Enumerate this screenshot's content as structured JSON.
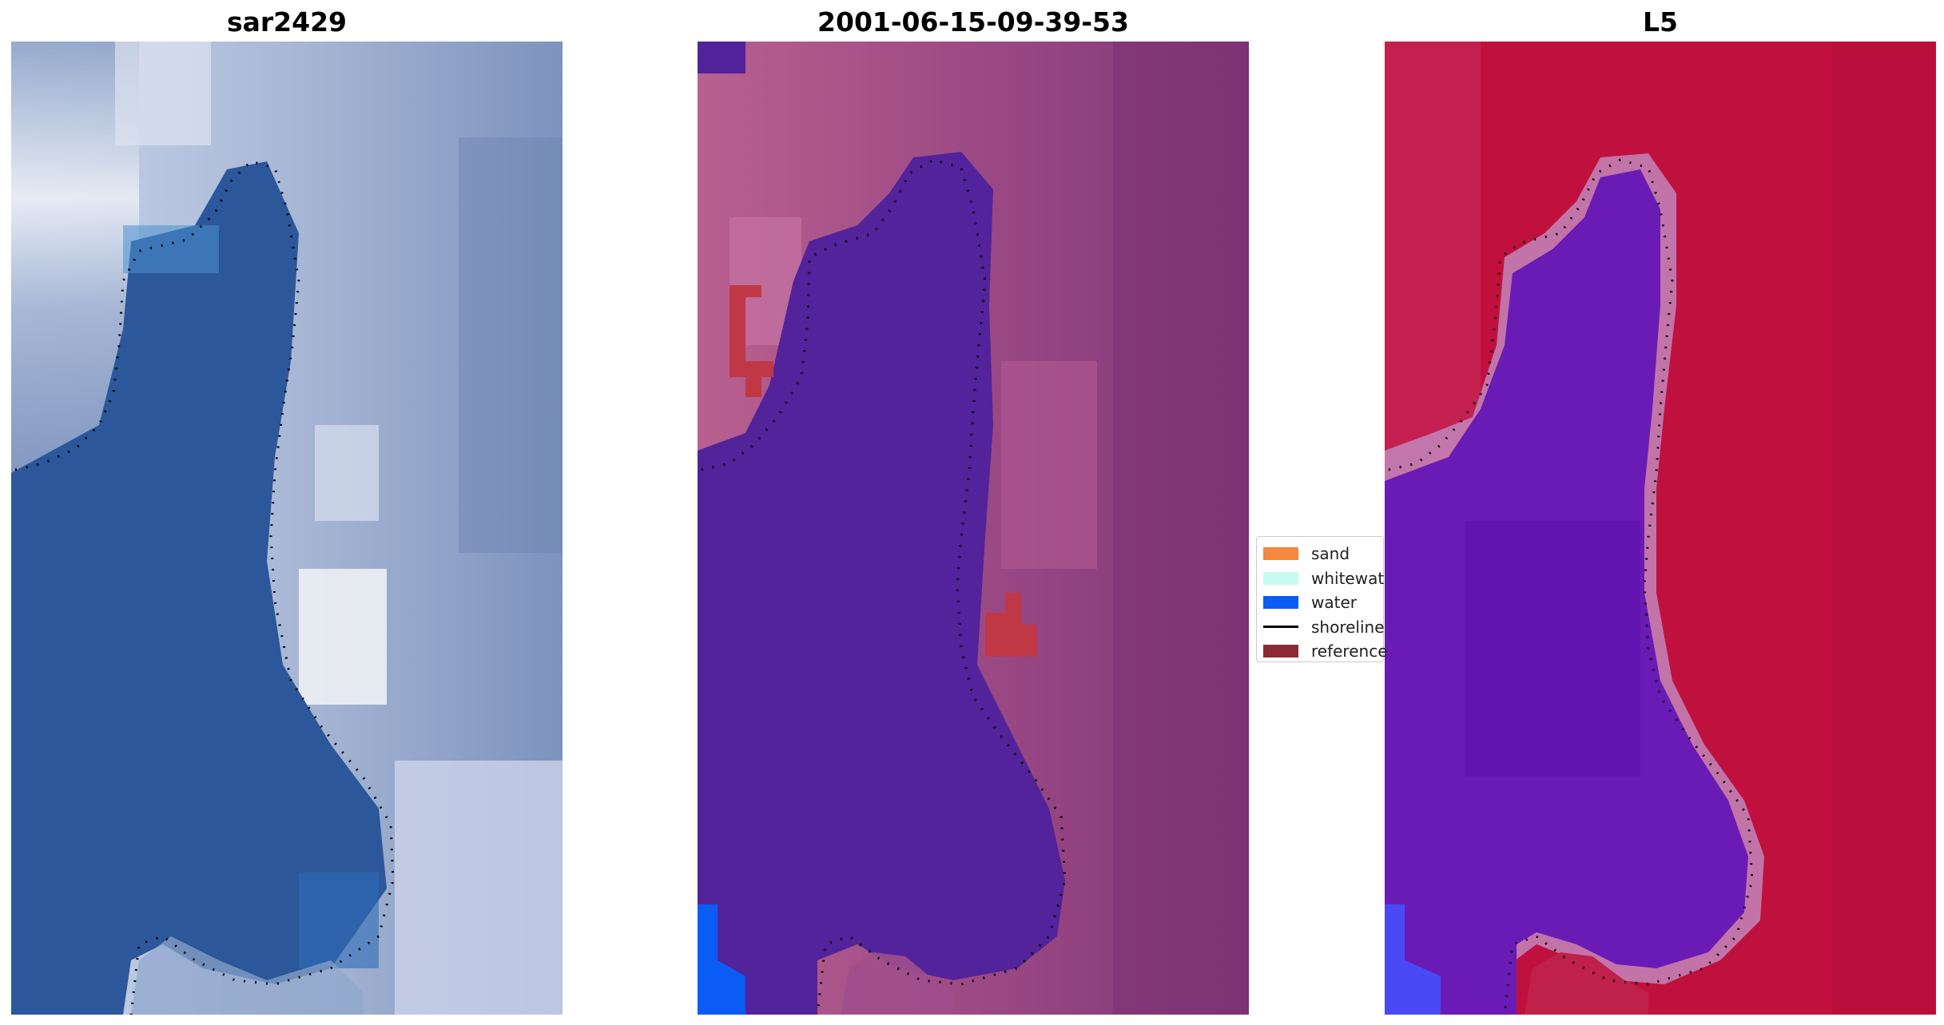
{
  "panels": [
    {
      "title": "sar2429",
      "color_scheme": "true-color satellite RGB (blue water, white/grey land)"
    },
    {
      "title": "2001-06-15-09-39-53",
      "color_scheme": "classified overlay (purple water class, magenta land)"
    },
    {
      "title": "L5",
      "color_scheme": "index map (purple water, crimson land)"
    }
  ],
  "legend": {
    "items": [
      {
        "label": "sand",
        "color": "#f5883c",
        "kind": "patch"
      },
      {
        "label": "whitewat",
        "color": "#c6fbf0",
        "kind": "patch"
      },
      {
        "label": "water",
        "color": "#0a5cf5",
        "kind": "patch"
      },
      {
        "label": "shoreline",
        "color": "#000000",
        "kind": "line"
      },
      {
        "label": "reference",
        "color": "#8c2a32",
        "kind": "patch"
      }
    ]
  },
  "colors": {
    "water_rgb": "#2a5598",
    "land_rgb": "#b9c6e0",
    "water_class": "#52239a",
    "land_class": "#a04f8c",
    "reference_patch": "#c03845",
    "water_index": "#6a1bb5",
    "land_index": "#c0113e",
    "shoreline": "#000000"
  }
}
